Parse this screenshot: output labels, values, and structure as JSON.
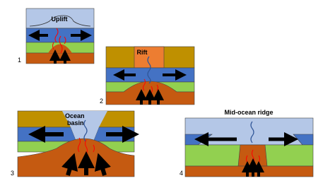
{
  "panels": [
    {
      "number": "1",
      "label": "Uplift"
    },
    {
      "number": "2",
      "label": "Rift"
    },
    {
      "number": "3",
      "label": [
        "Ocean",
        "basin"
      ]
    },
    {
      "number": "4",
      "label": "Mid-ocean ridge"
    }
  ]
}
